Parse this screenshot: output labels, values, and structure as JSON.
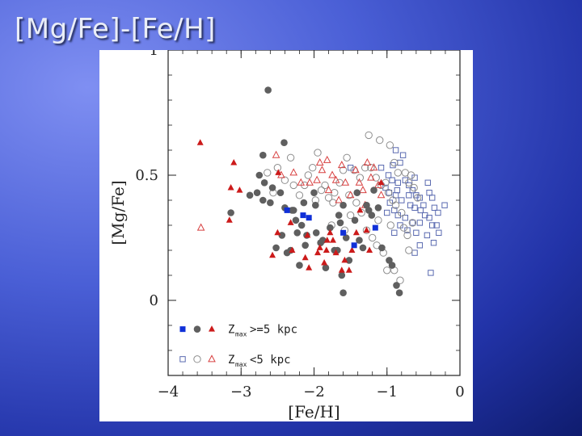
{
  "slide": {
    "title": "[Mg/Fe]-[Fe/H]"
  },
  "colors": {
    "filled_gray": "#5f5f5f",
    "filled_blue": "#1030d8",
    "filled_red": "#cc1a1a",
    "open_gray": "#8c8c8c",
    "open_blue": "#5a6ab0",
    "open_red": "#d84040"
  },
  "chart_data": {
    "type": "scatter",
    "xlabel": "[Fe/H]",
    "ylabel": "[Mg/Fe]",
    "xlim": [
      -4,
      0
    ],
    "ylim": [
      -0.3,
      1
    ],
    "xticks": [
      "-4",
      "-3",
      "-2",
      "-1",
      "0"
    ],
    "yticks": [
      "0",
      "0.5",
      "1"
    ],
    "legend_position": "bottom-left",
    "legend": [
      {
        "label_main": "Z",
        "label_sub": "max",
        "label_rest": ">=5 kpc"
      },
      {
        "label_main": "Z",
        "label_sub": "max",
        "label_rest": "<5 kpc"
      }
    ],
    "series": [
      {
        "marker": "circle-filled",
        "color": "gray",
        "points": [
          [
            -2.63,
            0.84
          ],
          [
            -2.41,
            0.63
          ],
          [
            -2.7,
            0.58
          ],
          [
            -2.68,
            0.47
          ],
          [
            -2.75,
            0.5
          ],
          [
            -2.78,
            0.43
          ],
          [
            -2.88,
            0.42
          ],
          [
            -2.6,
            0.39
          ],
          [
            -2.57,
            0.45
          ],
          [
            -2.4,
            0.37
          ],
          [
            -2.3,
            0.36
          ],
          [
            -2.25,
            0.32
          ],
          [
            -2.14,
            0.39
          ],
          [
            -2.23,
            0.27
          ],
          [
            -2.17,
            0.3
          ],
          [
            -2.12,
            0.22
          ],
          [
            -2.1,
            0.26
          ],
          [
            -2.32,
            0.2
          ],
          [
            -2.44,
            0.26
          ],
          [
            -2.37,
            0.19
          ],
          [
            -2.2,
            0.14
          ],
          [
            -2.28,
            0.36
          ],
          [
            -2.0,
            0.43
          ],
          [
            -1.97,
            0.27
          ],
          [
            -1.91,
            0.23
          ],
          [
            -1.88,
            0.24
          ],
          [
            -1.84,
            0.13
          ],
          [
            -1.78,
            0.29
          ],
          [
            -1.72,
            0.2
          ],
          [
            -1.68,
            0.2
          ],
          [
            -1.64,
            0.31
          ],
          [
            -1.62,
            0.1
          ],
          [
            -1.6,
            0.03
          ],
          [
            -1.56,
            0.25
          ],
          [
            -1.52,
            0.16
          ],
          [
            -1.44,
            0.32
          ],
          [
            -1.41,
            0.43
          ],
          [
            -1.38,
            0.24
          ],
          [
            -1.33,
            0.21
          ],
          [
            -1.28,
            0.38
          ],
          [
            -1.21,
            0.34
          ],
          [
            -1.18,
            0.44
          ],
          [
            -1.12,
            0.37
          ],
          [
            -1.07,
            0.21
          ],
          [
            -0.97,
            0.16
          ],
          [
            -0.93,
            0.14
          ],
          [
            -0.87,
            0.06
          ],
          [
            -0.83,
            0.03
          ],
          [
            -1.6,
            0.38
          ],
          [
            -1.66,
            0.34
          ],
          [
            -1.25,
            0.36
          ],
          [
            -3.14,
            0.35
          ],
          [
            -2.46,
            0.43
          ],
          [
            -2.7,
            0.4
          ],
          [
            -1.98,
            0.38
          ],
          [
            -2.52,
            0.21
          ]
        ]
      },
      {
        "marker": "square-filled",
        "color": "blue",
        "points": [
          [
            -2.37,
            0.36
          ],
          [
            -2.15,
            0.34
          ],
          [
            -2.07,
            0.33
          ],
          [
            -1.6,
            0.27
          ],
          [
            -1.45,
            0.22
          ],
          [
            -1.16,
            0.29
          ]
        ]
      },
      {
        "marker": "triangle-filled",
        "color": "red",
        "points": [
          [
            -3.56,
            0.63
          ],
          [
            -3.1,
            0.55
          ],
          [
            -3.14,
            0.45
          ],
          [
            -3.02,
            0.44
          ],
          [
            -3.16,
            0.32
          ],
          [
            -2.49,
            0.51
          ],
          [
            -2.5,
            0.27
          ],
          [
            -2.57,
            0.18
          ],
          [
            -2.32,
            0.31
          ],
          [
            -2.3,
            0.2
          ],
          [
            -2.12,
            0.17
          ],
          [
            -2.09,
            0.26
          ],
          [
            -1.95,
            0.19
          ],
          [
            -1.92,
            0.21
          ],
          [
            -1.86,
            0.15
          ],
          [
            -1.83,
            0.2
          ],
          [
            -1.82,
            0.24
          ],
          [
            -1.78,
            0.27
          ],
          [
            -1.74,
            0.24
          ],
          [
            -1.7,
            0.19
          ],
          [
            -1.58,
            0.16
          ],
          [
            -1.52,
            0.12
          ],
          [
            -1.48,
            0.2
          ],
          [
            -1.42,
            0.27
          ],
          [
            -1.37,
            0.36
          ],
          [
            -1.28,
            0.28
          ],
          [
            -1.24,
            0.2
          ],
          [
            -1.08,
            0.47
          ],
          [
            -2.07,
            0.13
          ],
          [
            -1.62,
            0.12
          ]
        ]
      },
      {
        "marker": "circle-open",
        "color": "gray",
        "points": [
          [
            -1.25,
            0.66
          ],
          [
            -1.1,
            0.64
          ],
          [
            -0.96,
            0.62
          ],
          [
            -0.9,
            0.55
          ],
          [
            -0.85,
            0.51
          ],
          [
            -0.75,
            0.51
          ],
          [
            -0.7,
            0.47
          ],
          [
            -0.67,
            0.5
          ],
          [
            -0.63,
            0.45
          ],
          [
            -0.58,
            0.41
          ],
          [
            -1.55,
            0.57
          ],
          [
            -1.45,
            0.52
          ],
          [
            -1.37,
            0.49
          ],
          [
            -1.3,
            0.53
          ],
          [
            -1.22,
            0.53
          ],
          [
            -1.15,
            0.49
          ],
          [
            -1.08,
            0.46
          ],
          [
            -1.02,
            0.47
          ],
          [
            -0.98,
            0.43
          ],
          [
            -0.92,
            0.4
          ],
          [
            -0.88,
            0.38
          ],
          [
            -0.8,
            0.35
          ],
          [
            -0.77,
            0.29
          ],
          [
            -0.72,
            0.26
          ],
          [
            -0.65,
            0.31
          ],
          [
            -1.6,
            0.52
          ],
          [
            -1.65,
            0.47
          ],
          [
            -1.72,
            0.43
          ],
          [
            -1.8,
            0.41
          ],
          [
            -1.85,
            0.46
          ],
          [
            -2.02,
            0.53
          ],
          [
            -2.08,
            0.5
          ],
          [
            -2.13,
            0.46
          ],
          [
            -2.2,
            0.42
          ],
          [
            -2.28,
            0.46
          ],
          [
            -2.4,
            0.48
          ],
          [
            -2.5,
            0.53
          ],
          [
            -2.56,
            0.43
          ],
          [
            -2.64,
            0.51
          ],
          [
            -1.95,
            0.59
          ],
          [
            -1.74,
            0.39
          ],
          [
            -1.52,
            0.42
          ],
          [
            -1.42,
            0.39
          ],
          [
            -1.35,
            0.35
          ],
          [
            -1.28,
            0.28
          ],
          [
            -1.2,
            0.25
          ],
          [
            -1.14,
            0.22
          ],
          [
            -1.05,
            0.19
          ],
          [
            -1.0,
            0.12
          ],
          [
            -0.9,
            0.12
          ],
          [
            -0.82,
            0.08
          ],
          [
            -0.95,
            0.3
          ],
          [
            -1.12,
            0.32
          ],
          [
            -0.7,
            0.2
          ],
          [
            -1.98,
            0.4
          ],
          [
            -1.5,
            0.34
          ],
          [
            -1.76,
            0.3
          ],
          [
            -1.9,
            0.44
          ],
          [
            -2.32,
            0.57
          ],
          [
            -1.58,
            0.28
          ]
        ]
      },
      {
        "marker": "square-open",
        "color": "blue",
        "points": [
          [
            -0.88,
            0.6
          ],
          [
            -0.78,
            0.58
          ],
          [
            -0.82,
            0.55
          ],
          [
            -0.92,
            0.54
          ],
          [
            -1.08,
            0.53
          ],
          [
            -0.98,
            0.5
          ],
          [
            -0.93,
            0.48
          ],
          [
            -0.85,
            0.47
          ],
          [
            -0.75,
            0.48
          ],
          [
            -0.7,
            0.46
          ],
          [
            -0.65,
            0.44
          ],
          [
            -0.6,
            0.42
          ],
          [
            -0.55,
            0.41
          ],
          [
            -1.02,
            0.45
          ],
          [
            -0.97,
            0.43
          ],
          [
            -0.88,
            0.42
          ],
          [
            -0.8,
            0.4
          ],
          [
            -0.68,
            0.38
          ],
          [
            -0.62,
            0.37
          ],
          [
            -0.5,
            0.38
          ],
          [
            -0.42,
            0.43
          ],
          [
            -0.38,
            0.41
          ],
          [
            -0.35,
            0.37
          ],
          [
            -0.21,
            0.38
          ],
          [
            -0.3,
            0.35
          ],
          [
            -0.96,
            0.39
          ],
          [
            -0.9,
            0.36
          ],
          [
            -0.85,
            0.34
          ],
          [
            -0.75,
            0.33
          ],
          [
            -0.65,
            0.31
          ],
          [
            -0.55,
            0.31
          ],
          [
            -0.48,
            0.34
          ],
          [
            -0.42,
            0.33
          ],
          [
            -0.38,
            0.3
          ],
          [
            -0.32,
            0.3
          ],
          [
            -0.72,
            0.28
          ],
          [
            -0.6,
            0.27
          ],
          [
            -0.55,
            0.22
          ],
          [
            -0.45,
            0.26
          ],
          [
            -0.36,
            0.23
          ],
          [
            -0.29,
            0.27
          ],
          [
            -0.62,
            0.19
          ],
          [
            -0.4,
            0.11
          ],
          [
            -0.9,
            0.27
          ],
          [
            -1.0,
            0.35
          ],
          [
            -1.5,
            0.53
          ],
          [
            -0.82,
            0.3
          ],
          [
            -0.7,
            0.42
          ],
          [
            -0.54,
            0.36
          ],
          [
            -0.44,
            0.47
          ],
          [
            -0.86,
            0.44
          ],
          [
            -0.62,
            0.49
          ]
        ]
      },
      {
        "marker": "triangle-open",
        "color": "red",
        "points": [
          [
            -3.55,
            0.29
          ],
          [
            -2.52,
            0.58
          ],
          [
            -2.45,
            0.5
          ],
          [
            -2.28,
            0.51
          ],
          [
            -2.06,
            0.47
          ],
          [
            -1.96,
            0.48
          ],
          [
            -1.89,
            0.52
          ],
          [
            -1.82,
            0.56
          ],
          [
            -1.75,
            0.5
          ],
          [
            -1.7,
            0.48
          ],
          [
            -1.62,
            0.54
          ],
          [
            -1.57,
            0.47
          ],
          [
            -1.5,
            0.42
          ],
          [
            -1.43,
            0.52
          ],
          [
            -1.38,
            0.47
          ],
          [
            -1.33,
            0.44
          ],
          [
            -1.27,
            0.55
          ],
          [
            -1.22,
            0.49
          ],
          [
            -1.18,
            0.53
          ],
          [
            -1.12,
            0.46
          ],
          [
            -1.08,
            0.42
          ],
          [
            -1.8,
            0.44
          ],
          [
            -1.66,
            0.4
          ],
          [
            -2.18,
            0.47
          ],
          [
            -1.3,
            0.38
          ],
          [
            -1.92,
            0.55
          ]
        ]
      }
    ]
  }
}
